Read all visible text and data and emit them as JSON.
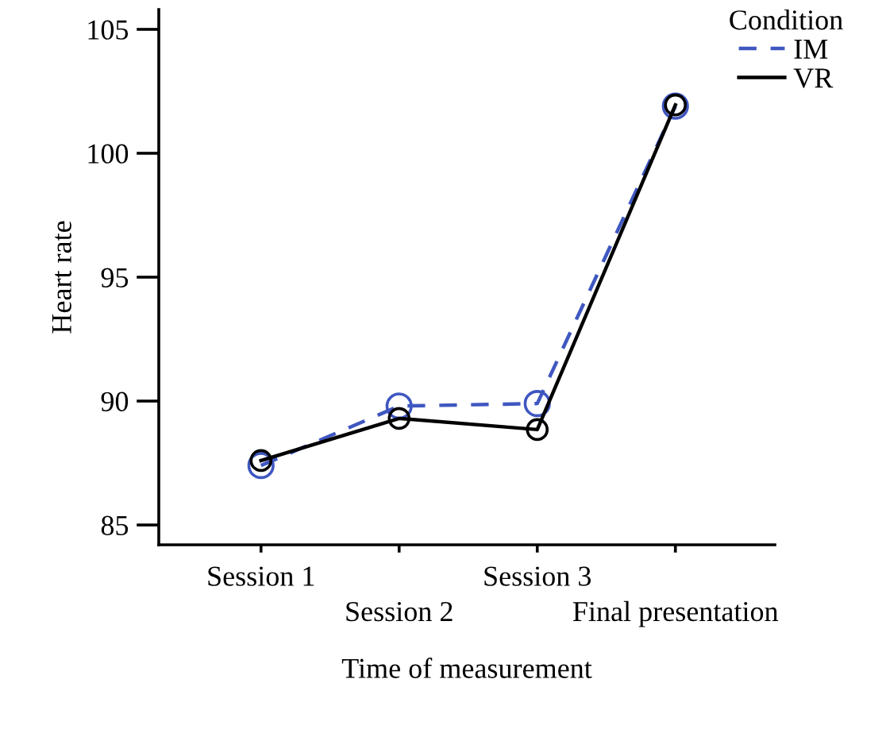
{
  "chart_data": {
    "type": "line",
    "xlabel": "Time of measurement",
    "ylabel": "Heart rate",
    "legend_title": "Condition",
    "legend": "top right",
    "marker": "circle",
    "grid": false,
    "categories": [
      "Session 1",
      "Session 2",
      "Session 3",
      "Final presentation"
    ],
    "ylim": [
      84.2,
      105.8
    ],
    "yticks": [
      85,
      90,
      95,
      100,
      105
    ],
    "series": [
      {
        "name": "IM",
        "color": "#3f57c0",
        "line_style": "dashed",
        "values": [
          87.4,
          89.8,
          89.9,
          101.9
        ]
      },
      {
        "name": "VR",
        "color": "#000000",
        "line_style": "solid",
        "values": [
          87.6,
          89.3,
          88.85,
          101.95
        ]
      }
    ]
  }
}
